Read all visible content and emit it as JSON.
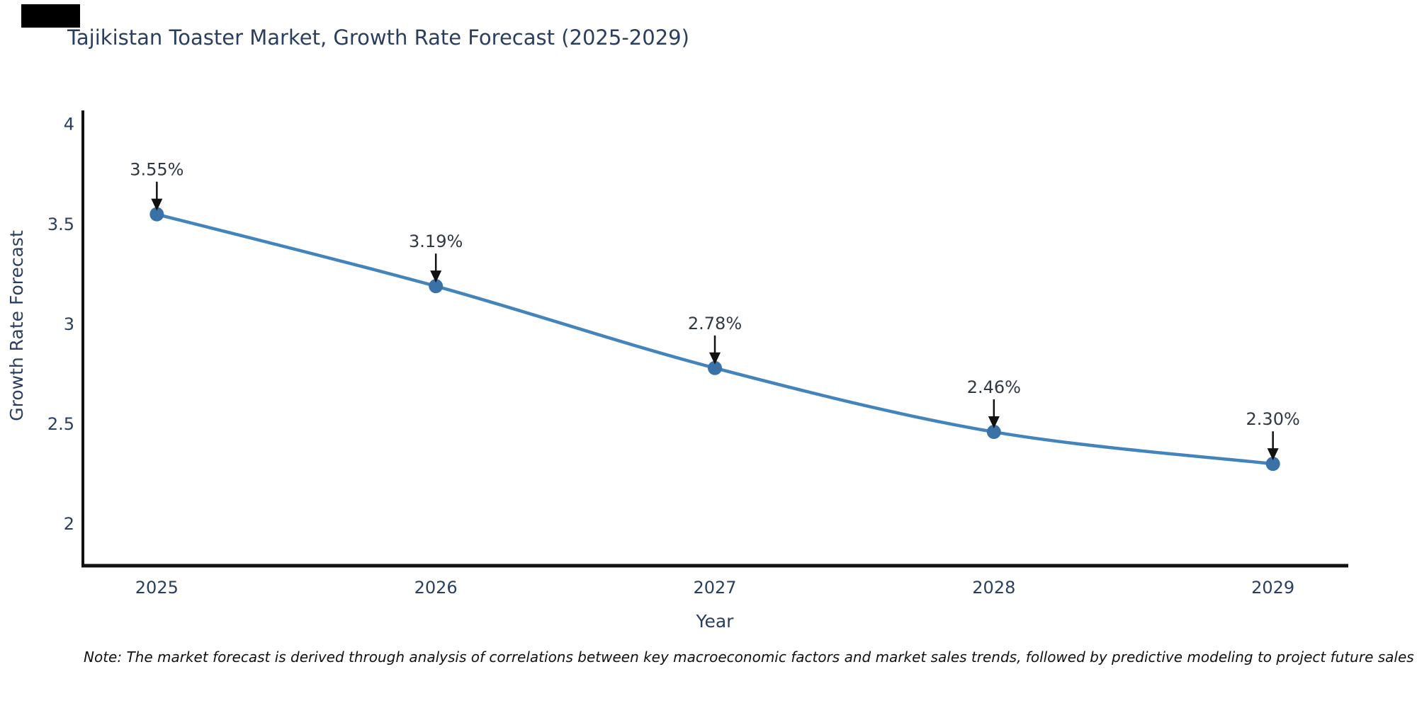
{
  "figure": {
    "title": "Tajikistan Toaster Market, Growth Rate Forecast (2025-2029)",
    "note": "Note: The market forecast is derived through analysis of correlations between key macroeconomic factors and market sales trends, followed by predictive modeling to project future sales"
  },
  "chart_data": {
    "type": "line",
    "title": "Tajikistan Toaster Market, Growth Rate Forecast (2025-2029)",
    "x": [
      2025,
      2026,
      2027,
      2028,
      2029
    ],
    "categories": [
      "2025",
      "2026",
      "2027",
      "2028",
      "2029"
    ],
    "series": [
      {
        "name": "Growth Rate Forecast",
        "values": [
          3.55,
          3.19,
          2.78,
          2.46,
          2.3
        ]
      }
    ],
    "point_labels": [
      "3.55%",
      "3.19%",
      "2.78%",
      "2.46%",
      "2.30%"
    ],
    "xlabel": "Year",
    "ylabel": "Growth Rate Forecast",
    "ylim": [
      1.79,
      4.07
    ],
    "xlim": [
      2024.73,
      2029.27
    ],
    "yticks": [
      2,
      2.5,
      3,
      3.5,
      4
    ],
    "ytick_labels": [
      "2",
      "2.5",
      "3",
      "3.5",
      "4"
    ],
    "xtick_labels": [
      "2025",
      "2026",
      "2027",
      "2028",
      "2029"
    ],
    "grid": false,
    "legend_position": "none",
    "line_shape": "spline",
    "colors": {
      "line": "#4384bc",
      "marker": "#3a72a8",
      "axis": "#111111",
      "tick_text": "#2a3f5f",
      "title_text": "#2a3f5f",
      "annotation_text": "#2f3843",
      "arrow": "#111111",
      "note_text": "#111111",
      "background": "#ffffff"
    }
  }
}
